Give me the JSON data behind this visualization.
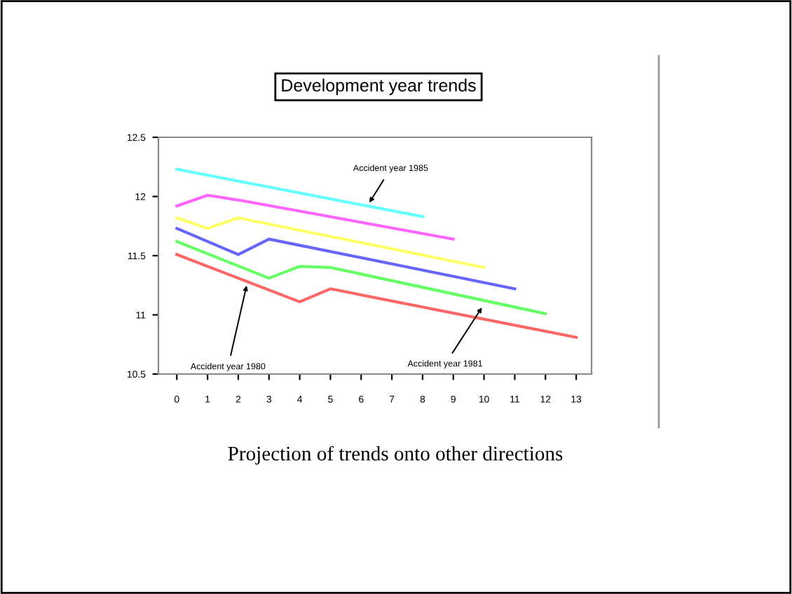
{
  "chart_data": {
    "type": "line",
    "title": "Development year trends",
    "series": [
      {
        "color": "#66ffff",
        "x": [
          0,
          8
        ],
        "values": [
          12.23,
          11.83
        ]
      },
      {
        "color": "#ff66ff",
        "x": [
          0,
          1,
          2,
          9
        ],
        "values": [
          11.92,
          12.01,
          11.97,
          11.64
        ]
      },
      {
        "color": "#ffff66",
        "x": [
          0,
          1,
          2,
          10
        ],
        "values": [
          11.82,
          11.73,
          11.82,
          11.4
        ]
      },
      {
        "color": "#6666ff",
        "x": [
          0,
          2,
          3,
          11
        ],
        "values": [
          11.73,
          11.51,
          11.64,
          11.22
        ]
      },
      {
        "color": "#66ff66",
        "x": [
          0,
          3,
          4,
          5,
          12
        ],
        "values": [
          11.62,
          11.31,
          11.41,
          11.4,
          11.01
        ]
      },
      {
        "color": "#ff6666",
        "x": [
          0,
          4,
          5,
          13
        ],
        "values": [
          11.51,
          11.11,
          11.22,
          10.81
        ]
      }
    ],
    "annotations": [
      {
        "text": "Accident year 1985",
        "x": 6.2,
        "y": 11.92
      },
      {
        "text": "Accident year 1980",
        "x": 2.3,
        "y": 11.28
      },
      {
        "text": "Accident year 1981",
        "x": 10,
        "y": 11.09
      },
      "Projection of trends onto other directions"
    ],
    "xlim": [
      -0.6,
      13.5
    ],
    "xticks": [
      0,
      1,
      2,
      3,
      4,
      5,
      6,
      7,
      8,
      9,
      10,
      11,
      12,
      13
    ],
    "ylim": [
      10.5,
      12.5
    ],
    "yticks": [
      10.5,
      11,
      11.5,
      12,
      12.5
    ],
    "grid": false,
    "legend": false,
    "marker": "none",
    "line_style": "solid"
  }
}
